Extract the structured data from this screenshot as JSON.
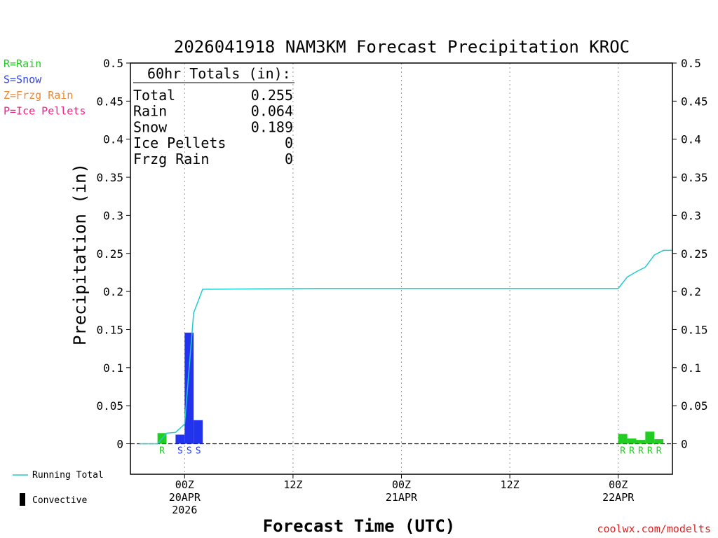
{
  "chart_data": {
    "type": "bar",
    "title": "2026041918 NAM3KM Forecast Precipitation KROC",
    "xlabel": "Forecast Time (UTC)",
    "ylabel": "Precipitation (in)",
    "ylim": [
      -0.04,
      0.5
    ],
    "xlim": [
      -6,
      54
    ],
    "y_ticks": [
      0,
      0.05,
      0.1,
      0.15,
      0.2,
      0.25,
      0.3,
      0.35,
      0.4,
      0.45,
      0.5
    ],
    "y_tick_labels": [
      "0",
      "0.05",
      "0.1",
      "0.15",
      "0.2",
      "0.25",
      "0.3",
      "0.35",
      "0.4",
      "0.45",
      "0.5"
    ],
    "x_ticks": [
      {
        "x": 0,
        "lines": [
          "00Z",
          "20APR",
          "2026"
        ]
      },
      {
        "x": 12,
        "lines": [
          "12Z"
        ]
      },
      {
        "x": 24,
        "lines": [
          "00Z",
          "21APR"
        ]
      },
      {
        "x": 36,
        "lines": [
          "12Z"
        ]
      },
      {
        "x": 48,
        "lines": [
          "00Z",
          "22APR"
        ]
      }
    ],
    "precip_type_legend": [
      {
        "label": "R=Rain",
        "color": "#22cc22"
      },
      {
        "label": "S=Snow",
        "color": "#3344ee"
      },
      {
        "label": "Z=Frzg Rain",
        "color": "#ee8833"
      },
      {
        "label": "P=Ice Pellets",
        "color": "#ee2288"
      }
    ],
    "line_legend": {
      "running_total": "Running Total",
      "convective": "Convective"
    },
    "totals": {
      "heading": "60hr Totals (in):",
      "rows": [
        {
          "label": "Total",
          "value": "0.255"
        },
        {
          "label": "Rain",
          "value": "0.064"
        },
        {
          "label": "Snow",
          "value": "0.189"
        },
        {
          "label": "Ice Pellets",
          "value": "0"
        },
        {
          "label": "Frzg Rain",
          "value": "0"
        }
      ]
    },
    "bars": [
      {
        "x": -2,
        "value": 0.014,
        "type": "R",
        "color": "#22cc22"
      },
      {
        "x": 0,
        "value": 0.012,
        "type": "S",
        "color": "#2233ee"
      },
      {
        "x": 1,
        "value": 0.146,
        "type": "S",
        "color": "#2233ee"
      },
      {
        "x": 2,
        "value": 0.031,
        "type": "S",
        "color": "#2233ee"
      },
      {
        "x": 49,
        "value": 0.013,
        "type": "R",
        "color": "#22cc22"
      },
      {
        "x": 50,
        "value": 0.007,
        "type": "R",
        "color": "#22cc22"
      },
      {
        "x": 51,
        "value": 0.005,
        "type": "R",
        "color": "#22cc22"
      },
      {
        "x": 52,
        "value": 0.016,
        "type": "R",
        "color": "#22cc22"
      },
      {
        "x": 53,
        "value": 0.006,
        "type": "R",
        "color": "#22cc22"
      }
    ],
    "running_total": {
      "color": "#22cccc",
      "x": [
        -5,
        -3,
        -2,
        -1,
        0,
        1,
        2,
        3,
        15,
        47,
        48,
        49,
        50,
        51,
        52,
        53,
        54
      ],
      "y": [
        0,
        0,
        0.014,
        0.015,
        0.026,
        0.172,
        0.203,
        0.203,
        0.204,
        0.204,
        0.204,
        0.219,
        0.226,
        0.232,
        0.248,
        0.254,
        0.254
      ]
    },
    "grid": "vertical dotted at 00Z/12Z",
    "credit": "coolwx.com/modelts"
  }
}
